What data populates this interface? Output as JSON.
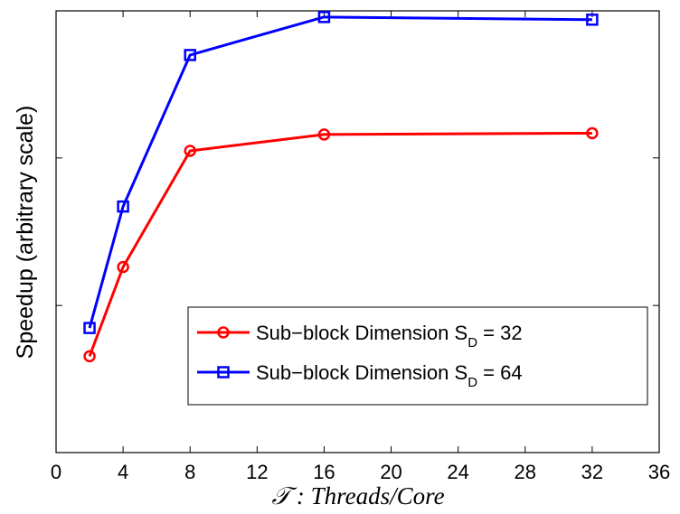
{
  "chart_data": {
    "type": "line",
    "title": "",
    "xlabel": "𝒯 : Threads/Core",
    "ylabel": "Speedup (arbitrary scale)",
    "xlim": [
      0,
      36
    ],
    "ylim": [
      0,
      1
    ],
    "xticks": [
      0,
      4,
      8,
      12,
      16,
      20,
      24,
      28,
      32,
      36
    ],
    "yticks_labeled": false,
    "grid": false,
    "legend_position": "bottom-right",
    "series": [
      {
        "name": "Sub−block Dimension S_D = 32",
        "legend_main": "Sub−block Dimension S",
        "legend_sub": "D",
        "legend_tail": " = 32",
        "color": "#ff0000",
        "marker": "circle",
        "x": [
          2,
          4,
          8,
          16,
          32
        ],
        "y": [
          0.218,
          0.42,
          0.683,
          0.72,
          0.723
        ]
      },
      {
        "name": "Sub−block Dimension S_D = 64",
        "legend_main": "Sub−block Dimension S",
        "legend_sub": "D",
        "legend_tail": " = 64",
        "color": "#0000ff",
        "marker": "square",
        "x": [
          2,
          4,
          8,
          16,
          32
        ],
        "y": [
          0.282,
          0.557,
          0.9,
          0.986,
          0.98
        ]
      }
    ]
  }
}
